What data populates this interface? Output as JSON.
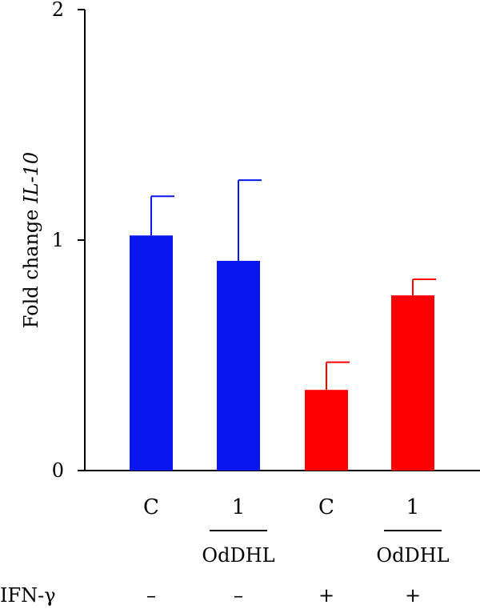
{
  "chart_data": {
    "type": "bar",
    "title": "",
    "xlabel": "",
    "ylabel_parts": [
      "Fold change ",
      "IL-10"
    ],
    "ylim": [
      0,
      2
    ],
    "yticks": [
      "0",
      "1",
      "2"
    ],
    "grid": false,
    "categories": [
      "C",
      "1",
      "C",
      "1"
    ],
    "values": [
      1.02,
      0.91,
      0.35,
      0.76
    ],
    "errors": [
      0.17,
      0.35,
      0.12,
      0.07
    ],
    "colors": [
      "#0a16ee",
      "#0a16ee",
      "#ff0000",
      "#ff0000"
    ],
    "group_labels": [
      "OdDHL",
      "OdDHL"
    ],
    "treatment": {
      "label": "IFN-γ",
      "values": [
        "–",
        "–",
        "+",
        "+"
      ]
    }
  }
}
